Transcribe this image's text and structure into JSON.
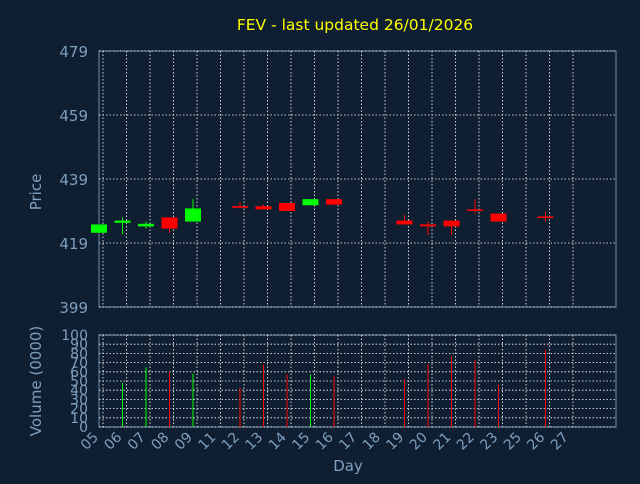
{
  "chart_data": {
    "type": "candlestick",
    "title": "FEV - last updated 26/01/2026",
    "price_panel": {
      "ylabel": "Price",
      "ylim": [
        399,
        479
      ],
      "yticks": [
        "479",
        "459",
        "439",
        "419",
        "399"
      ],
      "grid": true
    },
    "volume_panel": {
      "ylabel": "Volume (0000)",
      "ylim": [
        0,
        100
      ],
      "yticks": [
        "100",
        "90",
        "80",
        "70",
        "60",
        "50",
        "40",
        "30",
        "20",
        "10",
        "0"
      ],
      "grid": true
    },
    "xlabel": "Day",
    "x_tick_labels": [
      "05",
      "06",
      "07",
      "08",
      "09",
      "11",
      "12",
      "13",
      "14",
      "15",
      "16",
      "17",
      "18",
      "19",
      "20",
      "21",
      "22",
      "23",
      "25",
      "26",
      "27"
    ],
    "candles": [
      {
        "day": "05",
        "open": 422.2,
        "close": 424.8,
        "high": 424.8,
        "low": 422.2,
        "volume": 0
      },
      {
        "day": "06",
        "open": 425.3,
        "close": 426.0,
        "high": 427.0,
        "low": 421.8,
        "volume": 48
      },
      {
        "day": "07",
        "open": 424.2,
        "close": 425.0,
        "high": 425.7,
        "low": 423.5,
        "volume": 65
      },
      {
        "day": "08",
        "open": 427.0,
        "close": 423.5,
        "high": 427.0,
        "low": 422.2,
        "volume": 60
      },
      {
        "day": "09",
        "open": 425.7,
        "close": 429.8,
        "high": 432.7,
        "low": 425.7,
        "volume": 58
      },
      {
        "day": "12",
        "open": 430.5,
        "close": 430.0,
        "high": 431.8,
        "low": 429.8,
        "volume": 43
      },
      {
        "day": "13",
        "open": 430.5,
        "close": 429.5,
        "high": 431.0,
        "low": 429.5,
        "volume": 68
      },
      {
        "day": "14",
        "open": 431.5,
        "close": 429.0,
        "high": 431.5,
        "low": 429.0,
        "volume": 57
      },
      {
        "day": "15",
        "open": 430.8,
        "close": 432.7,
        "high": 432.7,
        "low": 430.8,
        "volume": 57
      },
      {
        "day": "16",
        "open": 432.7,
        "close": 431.0,
        "high": 432.7,
        "low": 430.8,
        "volume": 55
      },
      {
        "day": "19",
        "open": 426.0,
        "close": 424.8,
        "high": 427.8,
        "low": 424.8,
        "volume": 52
      },
      {
        "day": "20",
        "open": 424.8,
        "close": 424.2,
        "high": 425.7,
        "low": 421.5,
        "volume": 68
      },
      {
        "day": "21",
        "open": 426.0,
        "close": 424.2,
        "high": 426.0,
        "low": 421.5,
        "volume": 77
      },
      {
        "day": "22",
        "open": 429.5,
        "close": 429.0,
        "high": 432.7,
        "low": 428.2,
        "volume": 73
      },
      {
        "day": "23",
        "open": 428.2,
        "close": 425.7,
        "high": 428.2,
        "low": 425.7,
        "volume": 46
      },
      {
        "day": "26",
        "open": 427.3,
        "close": 426.8,
        "high": 428.8,
        "low": 425.7,
        "volume": 84
      }
    ],
    "colors": {
      "background": "#0f1f31",
      "up": "#00ff00",
      "down": "#ff0000",
      "grid": "#ffffff",
      "axis_text": "#7f9fbf",
      "title": "#ffff00"
    }
  }
}
